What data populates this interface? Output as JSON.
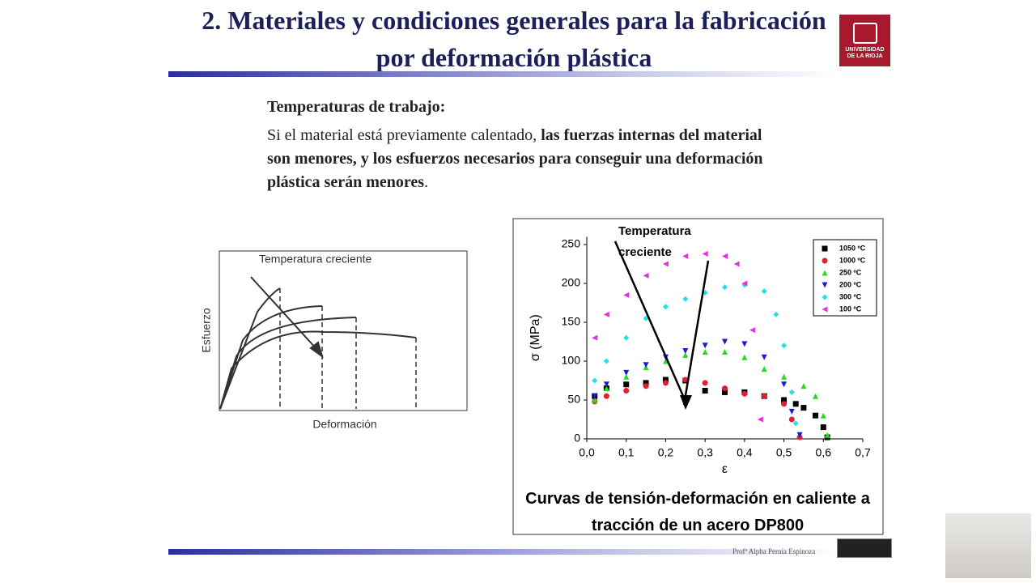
{
  "header": {
    "title": "2. Materiales y condiciones generales para la fabricación por deformación plástica",
    "logo": "UNIVERSIDAD DE LA RIOJA"
  },
  "body": {
    "heading": "Temperaturas de trabajo:",
    "paragraph": [
      "Si el material está previamente calentado, ",
      "las fuerzas internas del material son menores, y los esfuerzos necesarios para conseguir una deformación plástica serán menores",
      "."
    ]
  },
  "schematic": {
    "annotation": "Temperatura creciente",
    "y_label": "Esfuerzo",
    "x_label": "Deformación"
  },
  "chart_data": {
    "type": "scatter",
    "caption": "Curvas de tensión-deformación en caliente a tracción de un acero DP800",
    "annotation": "Temperatura creciente",
    "x_label": "ε",
    "y_label": "σ (MPa)",
    "xlim": [
      0,
      0.7
    ],
    "xticks": [
      {
        "value": 0,
        "label": "0,0"
      },
      {
        "value": 0.1,
        "label": "0,1"
      },
      {
        "value": 0.2,
        "label": "0,2"
      },
      {
        "value": 0.3,
        "label": "0,3"
      },
      {
        "value": 0.4,
        "label": "0,4"
      },
      {
        "value": 0.5,
        "label": "0,5"
      },
      {
        "value": 0.6,
        "label": "0,6"
      },
      {
        "value": 0.7,
        "label": "0,7"
      }
    ],
    "ylim": [
      0,
      260
    ],
    "yticks": [
      0,
      50,
      100,
      150,
      200,
      250
    ],
    "legend": "top-right",
    "series": [
      {
        "name": "1050 ºC",
        "color": "#000000",
        "marker": "square",
        "x": [
          0.02,
          0.05,
          0.1,
          0.15,
          0.2,
          0.25,
          0.3,
          0.35,
          0.4,
          0.45,
          0.5,
          0.53,
          0.55,
          0.58,
          0.6,
          0.61
        ],
        "values": [
          55,
          65,
          70,
          72,
          76,
          75,
          62,
          60,
          60,
          55,
          50,
          45,
          40,
          30,
          15,
          2
        ]
      },
      {
        "name": "1000 ºC",
        "color": "#e0202a",
        "marker": "circle",
        "x": [
          0.02,
          0.05,
          0.1,
          0.15,
          0.2,
          0.25,
          0.3,
          0.35,
          0.4,
          0.45,
          0.5,
          0.52,
          0.54
        ],
        "values": [
          48,
          55,
          62,
          68,
          72,
          76,
          72,
          65,
          58,
          55,
          45,
          25,
          2
        ]
      },
      {
        "name": "250 ºC",
        "color": "#22dd22",
        "marker": "triangle",
        "x": [
          0.02,
          0.05,
          0.1,
          0.15,
          0.2,
          0.25,
          0.3,
          0.35,
          0.4,
          0.45,
          0.5,
          0.55,
          0.58,
          0.6,
          0.61
        ],
        "values": [
          50,
          65,
          80,
          92,
          100,
          108,
          112,
          112,
          105,
          90,
          80,
          68,
          55,
          30,
          5
        ]
      },
      {
        "name": "200 ºC",
        "color": "#1a1ad0",
        "marker": "triangle-down",
        "x": [
          0.02,
          0.05,
          0.1,
          0.15,
          0.2,
          0.25,
          0.3,
          0.35,
          0.4,
          0.45,
          0.5,
          0.52,
          0.54
        ],
        "values": [
          55,
          70,
          85,
          95,
          105,
          113,
          120,
          125,
          122,
          105,
          70,
          35,
          5
        ]
      },
      {
        "name": "300 ºC",
        "color": "#22e0e8",
        "marker": "diamond",
        "x": [
          0.02,
          0.05,
          0.1,
          0.15,
          0.2,
          0.25,
          0.3,
          0.35,
          0.4,
          0.45,
          0.48,
          0.5,
          0.52,
          0.53
        ],
        "values": [
          75,
          100,
          130,
          155,
          170,
          180,
          188,
          195,
          198,
          190,
          160,
          120,
          60,
          20
        ]
      },
      {
        "name": "100 ºC",
        "color": "#e030e0",
        "marker": "triangle-left",
        "x": [
          0.02,
          0.05,
          0.1,
          0.15,
          0.2,
          0.25,
          0.3,
          0.35,
          0.38,
          0.4,
          0.42,
          0.44
        ],
        "values": [
          130,
          160,
          185,
          210,
          225,
          235,
          238,
          235,
          225,
          200,
          140,
          25
        ]
      }
    ]
  },
  "footer": {
    "author": "Profª Alpha Pernía Espinoza"
  }
}
